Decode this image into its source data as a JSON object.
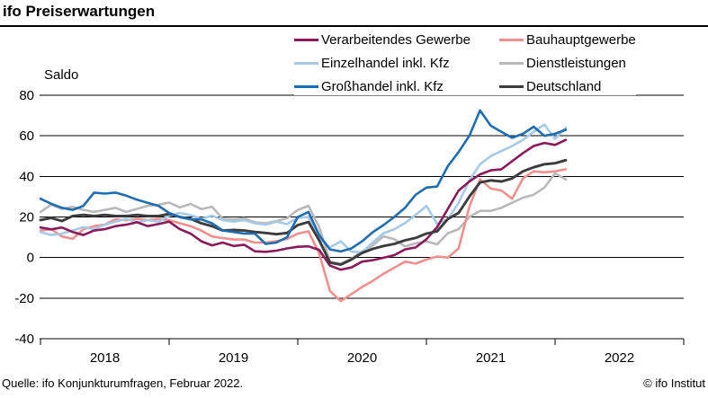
{
  "header": {
    "title": "ifo Preiserwartungen"
  },
  "footer": {
    "source": "Quelle: ifo Konjunkturumfragen, Februar 2022.",
    "copyright": "© ifo Institut"
  },
  "chart_data": {
    "type": "line",
    "title": "ifo Preiserwartungen",
    "ylabel": "Saldo",
    "ylim": [
      -40,
      80
    ],
    "yticks": [
      80,
      60,
      40,
      20,
      0,
      -20,
      -40
    ],
    "grid": "horizontal",
    "legend_position": "top-right",
    "x_start": "2018-01",
    "x_end": "2022-02",
    "x_frequency": "monthly",
    "x_year_labels": [
      "2018",
      "2019",
      "2020",
      "2021",
      "2022"
    ],
    "axis_color": "#000000",
    "draw_order": [
      3,
      1,
      2,
      0,
      5,
      4
    ],
    "series": [
      {
        "name": "Verarbeitendes Gewerbe",
        "color": "#8b1a5a",
        "values": [
          14.8,
          13.9,
          14.8,
          12.6,
          11.1,
          13.3,
          14,
          15.5,
          16.2,
          17.4,
          15.5,
          16.5,
          17.7,
          14,
          11.8,
          8,
          6,
          7.4,
          5.7,
          6.3,
          3.1,
          2.8,
          3.4,
          4.5,
          5.3,
          5.5,
          3.8,
          -4,
          -6,
          -4.9,
          -2,
          -1.3,
          -0.1,
          1.2,
          4,
          5,
          9,
          15,
          24,
          33,
          37.5,
          41,
          43,
          43.5,
          47.5,
          51.5,
          55,
          56.5,
          55.5,
          58
        ]
      },
      {
        "name": "Bauhauptgewerbe",
        "color": "#f0908e",
        "values": [
          13.3,
          14,
          10.4,
          9.2,
          14,
          15.5,
          16.2,
          18.8,
          18.4,
          19.1,
          18.4,
          19.1,
          18.4,
          16.9,
          15.5,
          13.3,
          10.4,
          9.6,
          8.9,
          8.9,
          7.4,
          7.4,
          8.1,
          9.2,
          11.8,
          12.9,
          2,
          -16.5,
          -21.5,
          -18,
          -14.5,
          -11.5,
          -8,
          -5,
          -2,
          -3,
          -1,
          0.5,
          0,
          4.5,
          25,
          38.5,
          34,
          33,
          29,
          39,
          42.5,
          42,
          42.5,
          43.5
        ]
      },
      {
        "name": "Einzelhandel inkl. Kfz",
        "color": "#a6cae6",
        "values": [
          12.6,
          11.1,
          11.8,
          13.3,
          15,
          14,
          16.2,
          17.7,
          19.1,
          17.4,
          18.4,
          17.7,
          20.6,
          22,
          20.9,
          19.1,
          20.6,
          18.4,
          17.7,
          18.4,
          16.9,
          16.2,
          17.7,
          16.5,
          19.5,
          20,
          9,
          5,
          8,
          3,
          2.5,
          7.5,
          12,
          14,
          17,
          21,
          25.5,
          16.5,
          19,
          27,
          38,
          46,
          50,
          52.5,
          55,
          58,
          62,
          65.5,
          58.5,
          64
        ]
      },
      {
        "name": "Dienstleistungen",
        "color": "#b9b9bb",
        "values": [
          22.5,
          26,
          24,
          25,
          23.5,
          22.5,
          23.5,
          24.5,
          22.5,
          24,
          25.5,
          26,
          27.1,
          24.7,
          26.4,
          23.9,
          25,
          19.1,
          18.7,
          19.4,
          17.4,
          16.9,
          18,
          19.4,
          23.5,
          25.5,
          15,
          -2,
          -3,
          -0.5,
          3,
          6,
          10.5,
          9,
          5.5,
          7,
          8,
          6.5,
          12,
          14,
          20,
          23,
          23,
          24.5,
          27,
          29.5,
          31,
          34.5,
          41.5,
          38.5
        ]
      },
      {
        "name": "Großhandel inkl. Kfz",
        "color": "#1e6db2",
        "values": [
          29,
          26.5,
          24.5,
          23.5,
          25.5,
          32,
          31.5,
          32,
          30.5,
          28.5,
          27,
          25.5,
          22,
          19.9,
          18.8,
          18.8,
          16.9,
          13.3,
          12.6,
          11.8,
          11.8,
          6.7,
          7.4,
          10,
          20,
          22.5,
          11,
          4,
          3,
          4.5,
          8,
          12.5,
          16,
          20,
          24.5,
          31,
          34.5,
          35,
          45,
          52,
          60,
          72.5,
          65,
          62,
          59,
          61,
          64.5,
          60,
          61,
          63
        ]
      },
      {
        "name": "Deutschland",
        "color": "#3c3c3e",
        "values": [
          18.5,
          19.5,
          18,
          20.5,
          21,
          20.5,
          21,
          20.5,
          20.5,
          21,
          20.5,
          20.5,
          21.5,
          20,
          19.1,
          16.9,
          15.5,
          13.3,
          13.6,
          13.3,
          12.6,
          12.1,
          11.5,
          12.1,
          16,
          17.5,
          8.5,
          -2.5,
          -3.5,
          -1,
          2.3,
          4.3,
          5.7,
          6.7,
          8.5,
          9.7,
          11.8,
          12.9,
          19,
          22,
          30,
          37,
          38,
          37.5,
          39,
          42.5,
          44.5,
          46,
          46.5,
          48
        ]
      }
    ]
  }
}
